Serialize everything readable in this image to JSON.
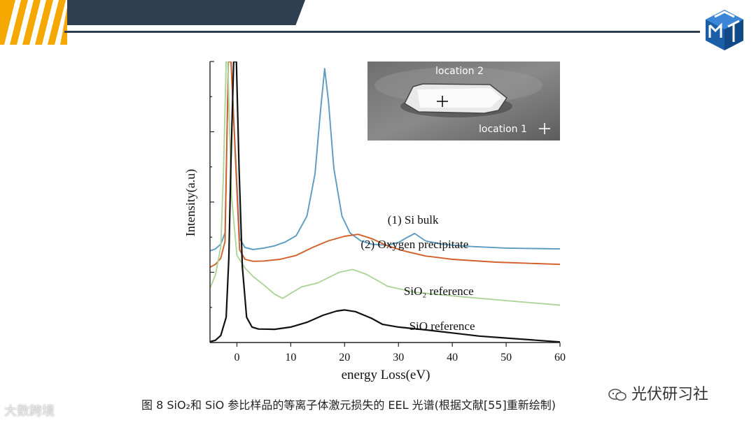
{
  "brand": {
    "logo_icon": "company-cube-logo-icon",
    "accent": "#f5a800",
    "dark": "#2f3f52"
  },
  "caption": "图 8 SiO₂和 SiO 参比样品的等离子体激元损失的 EEL 光谱(根据文献[55]重新绘制)",
  "watermark_left": "大数跨境",
  "watermark_right": "光伏研习社",
  "inset": {
    "label_top": "location 2",
    "label_bottom": "location 1"
  },
  "chart_data": {
    "type": "line",
    "title": "",
    "xlabel": "energy Loss(eV)",
    "ylabel": "Intensity(a.u)",
    "xlim": [
      -5,
      60
    ],
    "xticks": [
      0,
      10,
      20,
      30,
      40,
      50,
      60
    ],
    "y_tick_labels_shown": false,
    "series": [
      {
        "name": "(1) Si bulk",
        "color": "#5b9bc0",
        "x": [
          -5,
          -4,
          -3,
          -2.2,
          -1.6,
          -1.1,
          0.5,
          1.5,
          3,
          5,
          7,
          9,
          11,
          13,
          14.5,
          15.5,
          16.3,
          17,
          18,
          19.5,
          21,
          23,
          25,
          28,
          30,
          31.5,
          33,
          35,
          38,
          42,
          50,
          60
        ],
        "y": [
          32.6,
          33.3,
          35.0,
          39.0,
          100,
          100,
          37.0,
          33.8,
          33.1,
          33.6,
          34.4,
          35.8,
          38.0,
          45.0,
          60.0,
          82.0,
          97.5,
          86.0,
          62.0,
          45.0,
          39.0,
          36.2,
          35.0,
          34.6,
          35.6,
          37.3,
          38.8,
          36.2,
          35.0,
          34.3,
          33.6,
          33.3
        ]
      },
      {
        "name": "(2) Oxygen precipitate",
        "color": "#d2602a",
        "x": [
          -5,
          -4,
          -3,
          -2.2,
          -1.6,
          -1.1,
          0.5,
          1.5,
          3,
          5,
          8,
          11,
          14,
          17,
          20,
          22.5,
          25,
          28,
          31,
          35,
          40,
          48,
          60
        ],
        "y": [
          26.8,
          27.8,
          30.0,
          36.0,
          100,
          100,
          33.0,
          29.6,
          28.9,
          29.0,
          29.6,
          31.0,
          33.8,
          36.2,
          37.8,
          38.5,
          37.0,
          34.4,
          32.6,
          30.8,
          29.6,
          28.6,
          27.8
        ]
      },
      {
        "name": "SiO₂ reference",
        "color": "#aed49a",
        "x": [
          -5,
          -4,
          -3,
          -2.5,
          -2.0,
          -1.7,
          -1.4,
          -1.0,
          0,
          1.5,
          3,
          5,
          7,
          8.5,
          10,
          12,
          15,
          19,
          21.5,
          24,
          28,
          33,
          40,
          50,
          60
        ],
        "y": [
          19.3,
          24.0,
          34.0,
          60.0,
          100,
          100,
          78.0,
          52.0,
          31.0,
          26.5,
          23.5,
          20.5,
          17.2,
          15.7,
          17.5,
          19.8,
          21.2,
          25.0,
          26.0,
          24.3,
          20.0,
          17.9,
          16.6,
          14.9,
          13.3
        ]
      },
      {
        "name": "SiO reference",
        "color": "#111111",
        "x": [
          -5,
          -4,
          -3,
          -2,
          -1.5,
          -1.1,
          -0.6,
          -0.1,
          0.4,
          1.0,
          1.8,
          2.8,
          4,
          7,
          10,
          13,
          16,
          18.5,
          20,
          22,
          25,
          27,
          30,
          35,
          40,
          45,
          50,
          55,
          60
        ],
        "y": [
          0.3,
          0.8,
          2.5,
          9.0,
          30.0,
          65.0,
          100,
          100,
          62.0,
          27.0,
          9.0,
          5.5,
          4.8,
          4.7,
          5.5,
          7.2,
          9.7,
          11.2,
          11.6,
          11.0,
          8.6,
          6.5,
          5.5,
          4.5,
          3.4,
          2.3,
          1.6,
          0.9,
          0.2
        ]
      }
    ]
  }
}
